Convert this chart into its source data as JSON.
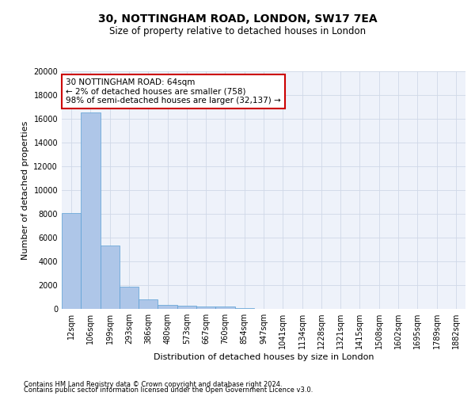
{
  "title1": "30, NOTTINGHAM ROAD, LONDON, SW17 7EA",
  "title2": "Size of property relative to detached houses in London",
  "xlabel": "Distribution of detached houses by size in London",
  "ylabel": "Number of detached properties",
  "footnote1": "Contains HM Land Registry data © Crown copyright and database right 2024.",
  "footnote2": "Contains public sector information licensed under the Open Government Licence v3.0.",
  "annotation_line1": "30 NOTTINGHAM ROAD: 64sqm",
  "annotation_line2": "← 2% of detached houses are smaller (758)",
  "annotation_line3": "98% of semi-detached houses are larger (32,137) →",
  "bar_color": "#aec6e8",
  "bar_edge_color": "#5a9fd4",
  "annotation_box_edge_color": "#cc0000",
  "annotation_box_face_color": "#ffffff",
  "grid_color": "#d0d8e8",
  "background_color": "#eef2fa",
  "fig_background": "#ffffff",
  "categories": [
    "12sqm",
    "106sqm",
    "199sqm",
    "293sqm",
    "386sqm",
    "480sqm",
    "573sqm",
    "667sqm",
    "760sqm",
    "854sqm",
    "947sqm",
    "1041sqm",
    "1134sqm",
    "1228sqm",
    "1321sqm",
    "1415sqm",
    "1508sqm",
    "1602sqm",
    "1695sqm",
    "1789sqm",
    "1882sqm"
  ],
  "values": [
    8100,
    16500,
    5350,
    1850,
    780,
    340,
    270,
    200,
    200,
    50,
    30,
    20,
    10,
    10,
    5,
    5,
    3,
    2,
    2,
    1,
    1
  ],
  "ylim": [
    0,
    20000
  ],
  "yticks": [
    0,
    2000,
    4000,
    6000,
    8000,
    10000,
    12000,
    14000,
    16000,
    18000,
    20000
  ],
  "title1_fontsize": 10,
  "title2_fontsize": 8.5,
  "xlabel_fontsize": 8,
  "ylabel_fontsize": 8,
  "tick_fontsize": 7,
  "footnote_fontsize": 6
}
